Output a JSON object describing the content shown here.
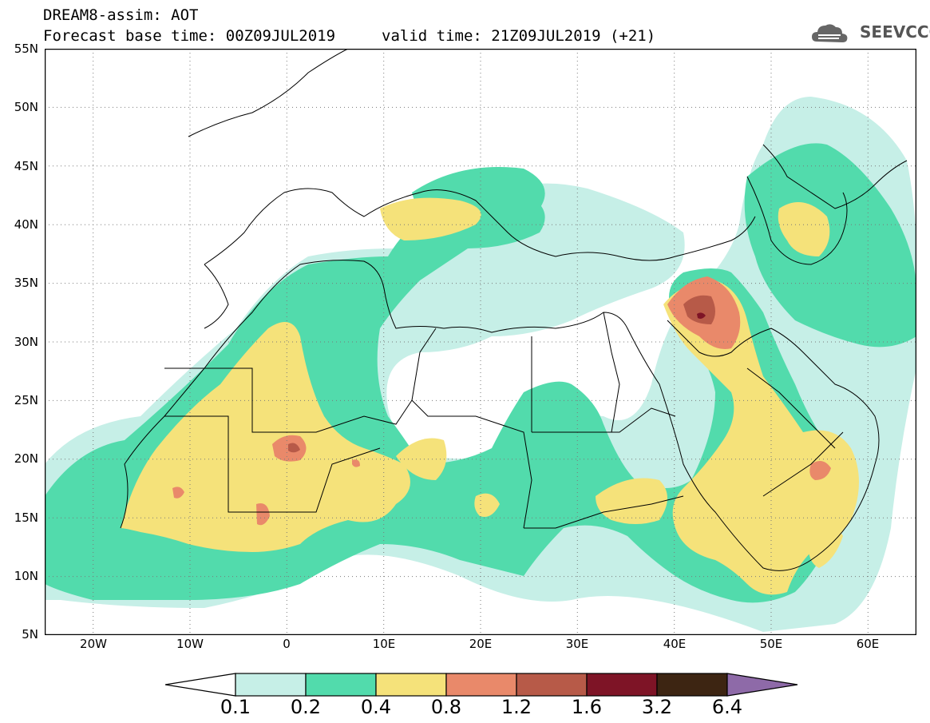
{
  "header": {
    "title": "DREAM8-assim: AOT",
    "base_time": "Forecast base time: 00Z09JUL2019",
    "valid_time": "valid time: 21Z09JUL2019 (+21)",
    "logo_text": "SEEVCCC",
    "logo_icon": "cloud-icon"
  },
  "map": {
    "lon_range": [
      -25,
      65
    ],
    "lat_range": [
      5,
      55
    ],
    "lat_ticks": [
      "55N",
      "50N",
      "45N",
      "40N",
      "35N",
      "30N",
      "25N",
      "20N",
      "15N",
      "10N",
      "5N"
    ],
    "lon_ticks": [
      "20W",
      "10W",
      "0",
      "10E",
      "20E",
      "30E",
      "40E",
      "50E",
      "60E"
    ],
    "grid": "dotted",
    "colors": {
      "level_0_1": "#c6efe7",
      "level_0_2": "#52dbac",
      "level_0_4": "#f5e27a",
      "level_0_8": "#e9896a",
      "level_1_2": "#b75a48",
      "level_1_6": "#7e1426",
      "level_3_2": "#3d2512",
      "level_6_4": "#8e6aa8"
    }
  },
  "colorbar": {
    "labels": [
      "0.1",
      "0.2",
      "0.4",
      "0.8",
      "1.2",
      "1.6",
      "3.2",
      "6.4"
    ],
    "colors": [
      "#c6efe7",
      "#52dbac",
      "#f5e27a",
      "#e9896a",
      "#b75a48",
      "#7e1426",
      "#3d2512"
    ],
    "under_color": "#ffffff",
    "over_color": "#8e6aa8"
  }
}
